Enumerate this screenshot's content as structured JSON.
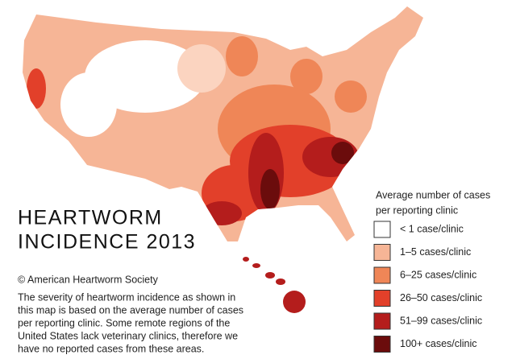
{
  "title_lines": [
    "HEARTWORM",
    "INCIDENCE 2013"
  ],
  "copyright": "© American Heartworm Society",
  "description_lines": [
    "The severity of heartworm incidence as shown in",
    "this map is based on the average number of cases",
    "per reporting clinic. Some remote regions of the",
    "United States lack veterinary clinics, therefore we",
    "have no reported cases from these areas."
  ],
  "legend": {
    "title_lines": [
      "Average number of cases",
      "per reporting clinic"
    ],
    "items": [
      {
        "label": "< 1 case/clinic",
        "color": "#ffffff"
      },
      {
        "label": "1–5 cases/clinic",
        "color": "#f6b596"
      },
      {
        "label": "6–25 cases/clinic",
        "color": "#ef8657"
      },
      {
        "label": "26–50 cases/clinic",
        "color": "#e2402a"
      },
      {
        "label": "51–99 cases/clinic",
        "color": "#b41d1c"
      },
      {
        "label": "100+ cases/clinic",
        "color": "#6b0c0c"
      }
    ]
  }
}
